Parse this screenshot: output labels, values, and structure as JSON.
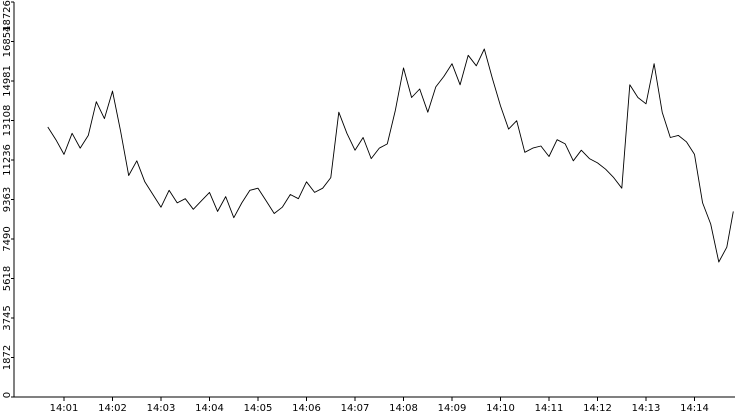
{
  "chart_data": {
    "type": "line",
    "title": "",
    "xlabel": "",
    "ylabel": "",
    "ylim": [
      0,
      18726
    ],
    "y_ticks": [
      0,
      1872,
      3745,
      5618,
      7490,
      9363,
      11236,
      13108,
      14981,
      16854,
      18726
    ],
    "y_tick_labels": [
      "0",
      "1872",
      "3745",
      "5618",
      "7490",
      "9363",
      "11236",
      "13108",
      "14981",
      "16854",
      "18726"
    ],
    "x_ticks": [
      "14:01",
      "14:02",
      "14:03",
      "14:04",
      "14:05",
      "14:06",
      "14:07",
      "14:08",
      "14:09",
      "14:10",
      "14:11",
      "14:12",
      "14:13",
      "14:14"
    ],
    "xlim": [
      "14:00:40",
      "14:14:48"
    ],
    "grid": false,
    "legend": "none",
    "line_color": "#000000",
    "series": [
      {
        "x": [
          "14:00:40",
          "14:00:50",
          "14:01:00",
          "14:01:10",
          "14:01:20",
          "14:01:30",
          "14:01:40",
          "14:01:50",
          "14:02:00",
          "14:02:10",
          "14:02:20",
          "14:02:30",
          "14:02:40",
          "14:02:50",
          "14:03:00",
          "14:03:10",
          "14:03:20",
          "14:03:30",
          "14:03:40",
          "14:03:50",
          "14:04:00",
          "14:04:10",
          "14:04:20",
          "14:04:30",
          "14:04:40",
          "14:04:50",
          "14:05:00",
          "14:05:10",
          "14:05:20",
          "14:05:30",
          "14:05:40",
          "14:05:50",
          "14:06:00",
          "14:06:10",
          "14:06:20",
          "14:06:30",
          "14:06:40",
          "14:06:50",
          "14:07:00",
          "14:07:10",
          "14:07:20",
          "14:07:30",
          "14:07:40",
          "14:07:50",
          "14:08:00",
          "14:08:10",
          "14:08:20",
          "14:08:30",
          "14:08:40",
          "14:08:50",
          "14:09:00",
          "14:09:10",
          "14:09:20",
          "14:09:30",
          "14:09:40",
          "14:09:50",
          "14:10:00",
          "14:10:10",
          "14:10:20",
          "14:10:30",
          "14:10:40",
          "14:10:50",
          "14:11:00",
          "14:11:10",
          "14:11:20",
          "14:11:30",
          "14:11:40",
          "14:11:50",
          "14:12:00",
          "14:12:10",
          "14:12:20",
          "14:12:30",
          "14:12:40",
          "14:12:50",
          "14:13:00",
          "14:13:10",
          "14:13:20",
          "14:13:30",
          "14:13:40",
          "14:13:50",
          "14:14:00",
          "14:14:10",
          "14:14:20",
          "14:14:30",
          "14:14:40",
          "14:14:48"
        ],
        "values": [
          12800,
          12200,
          11500,
          12500,
          11800,
          12400,
          14000,
          13200,
          14500,
          12600,
          10500,
          11200,
          10200,
          9600,
          9000,
          9800,
          9200,
          9400,
          8900,
          9300,
          9700,
          8800,
          9500,
          8500,
          9200,
          9800,
          9900,
          9300,
          8700,
          9000,
          9600,
          9400,
          10200,
          9700,
          9900,
          10400,
          13500,
          12500,
          11700,
          12300,
          11300,
          11800,
          12000,
          13600,
          15600,
          14200,
          14600,
          13500,
          14700,
          15200,
          15800,
          14800,
          16200,
          15700,
          16500,
          15100,
          13800,
          12700,
          13100,
          11600,
          11800,
          11900,
          11400,
          12200,
          12000,
          11200,
          11700,
          11300,
          11100,
          10800,
          10400,
          9900,
          14800,
          14200,
          13900,
          15800,
          13500,
          12300,
          12400,
          12100,
          11500,
          9200,
          8200,
          6400,
          7100,
          8800
        ]
      }
    ]
  }
}
